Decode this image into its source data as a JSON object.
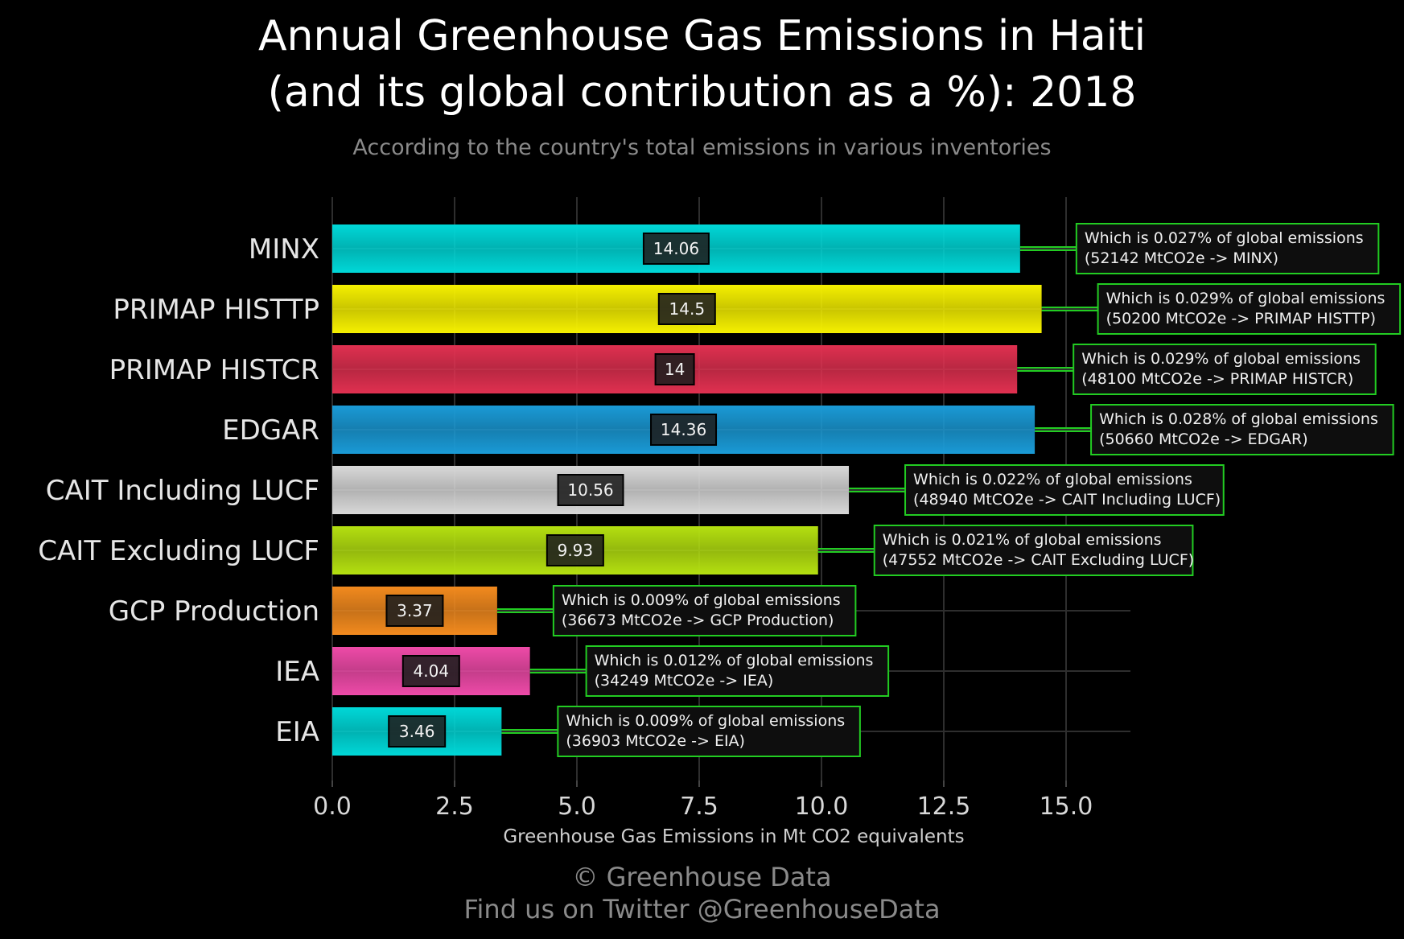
{
  "header": {
    "title_line1": "Annual Greenhouse Gas Emissions in Haiti",
    "title_line2": "(and its global contribution as a %): 2018",
    "subtitle": "According to the country's total emissions in various inventories"
  },
  "footer": {
    "copyright": "© Greenhouse Data",
    "twitter": "Find us on Twitter @GreenhouseData"
  },
  "chart_data": {
    "type": "bar",
    "orientation": "horizontal",
    "xlabel": "Greenhouse Gas Emissions in Mt CO2 equivalents",
    "xlim": [
      0,
      16.4
    ],
    "xticks": [
      0.0,
      2.5,
      5.0,
      7.5,
      10.0,
      12.5,
      15.0
    ],
    "xtick_labels": [
      "0.0",
      "2.5",
      "5.0",
      "7.5",
      "10.0",
      "12.5",
      "15.0"
    ],
    "grid": true,
    "categories": [
      "MINX",
      "PRIMAP HISTTP",
      "PRIMAP HISTCR",
      "EDGAR",
      "CAIT Including LUCF",
      "CAIT Excluding LUCF",
      "GCP Production",
      "IEA",
      "EIA"
    ],
    "values": [
      14.06,
      14.5,
      14,
      14.36,
      10.56,
      9.93,
      3.37,
      4.04,
      3.46
    ],
    "value_labels": [
      "14.06",
      "14.5",
      "14",
      "14.36",
      "10.56",
      "9.93",
      "3.37",
      "4.04",
      "3.46"
    ],
    "colors": [
      "#00d8d8",
      "#f5f000",
      "#e03050",
      "#1a9ad6",
      "#d8d8d8",
      "#b4e010",
      "#f28a1e",
      "#ee4aa8",
      "#00d8d8"
    ],
    "annotations": [
      {
        "line1": "Which is 0.027% of global emissions",
        "line2": "(52142 MtCO2e -> MINX)"
      },
      {
        "line1": "Which is 0.029% of global emissions",
        "line2": "(50200 MtCO2e -> PRIMAP HISTTP)"
      },
      {
        "line1": "Which is 0.029% of global emissions",
        "line2": "(48100 MtCO2e -> PRIMAP HISTCR)"
      },
      {
        "line1": "Which is 0.028% of global emissions",
        "line2": "(50660 MtCO2e -> EDGAR)"
      },
      {
        "line1": "Which is 0.022% of global emissions",
        "line2": "(48940 MtCO2e -> CAIT Including LUCF)"
      },
      {
        "line1": "Which is 0.021% of global emissions",
        "line2": "(47552 MtCO2e -> CAIT Excluding LUCF)"
      },
      {
        "line1": "Which is 0.009% of global emissions",
        "line2": "(36673 MtCO2e -> GCP Production)"
      },
      {
        "line1": "Which is 0.012% of global emissions",
        "line2": "(34249 MtCO2e -> IEA)"
      },
      {
        "line1": "Which is 0.009% of global emissions",
        "line2": "(36903 MtCO2e -> EIA)"
      }
    ],
    "annotation_color": "#22cc22"
  }
}
